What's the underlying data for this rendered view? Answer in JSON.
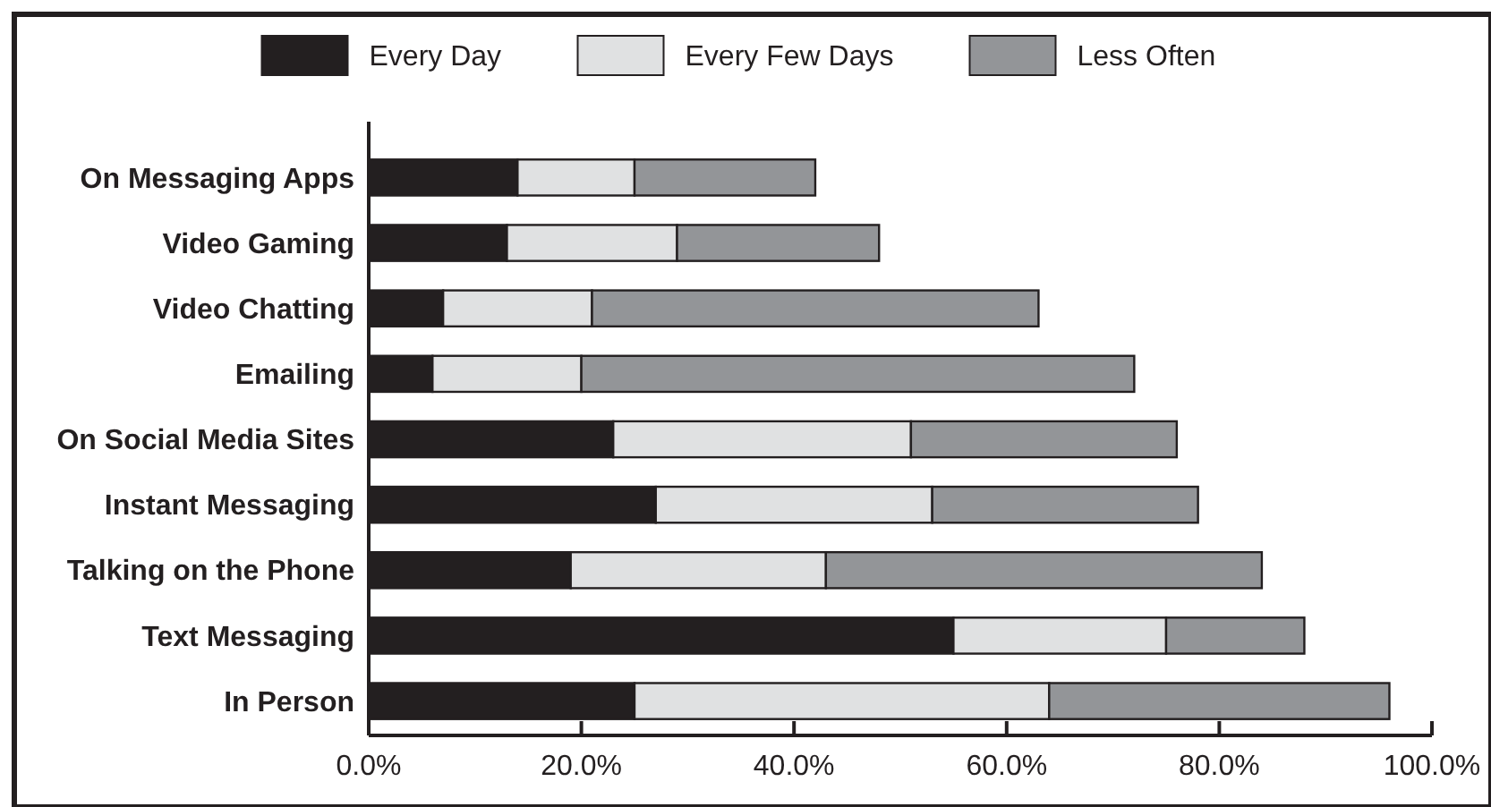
{
  "chart_data": {
    "type": "bar",
    "orientation": "horizontal",
    "stacked": true,
    "categories": [
      "On Messaging Apps",
      "Video Gaming",
      "Video Chatting",
      "Emailing",
      "On Social Media Sites",
      "Instant Messaging",
      "Talking on the Phone",
      "Text Messaging",
      "In Person"
    ],
    "series": [
      {
        "name": "Every Day",
        "color": "#231f20",
        "values": [
          14,
          13,
          7,
          6,
          23,
          27,
          19,
          55,
          25
        ]
      },
      {
        "name": "Every Few Days",
        "color": "#e0e1e2",
        "values": [
          11,
          16,
          14,
          14,
          28,
          26,
          24,
          20,
          39
        ]
      },
      {
        "name": "Less Often",
        "color": "#939598",
        "values": [
          17,
          19,
          42,
          52,
          25,
          25,
          41,
          13,
          32
        ]
      }
    ],
    "xlim": [
      0,
      100
    ],
    "xticks": [
      {
        "value": 0,
        "label": "0.0%"
      },
      {
        "value": 20,
        "label": "20.0%"
      },
      {
        "value": 40,
        "label": "40.0%"
      },
      {
        "value": 60,
        "label": "60.0%"
      },
      {
        "value": 80,
        "label": "80.0%"
      },
      {
        "value": 100,
        "label": "100.0%"
      }
    ],
    "legend": "top"
  }
}
